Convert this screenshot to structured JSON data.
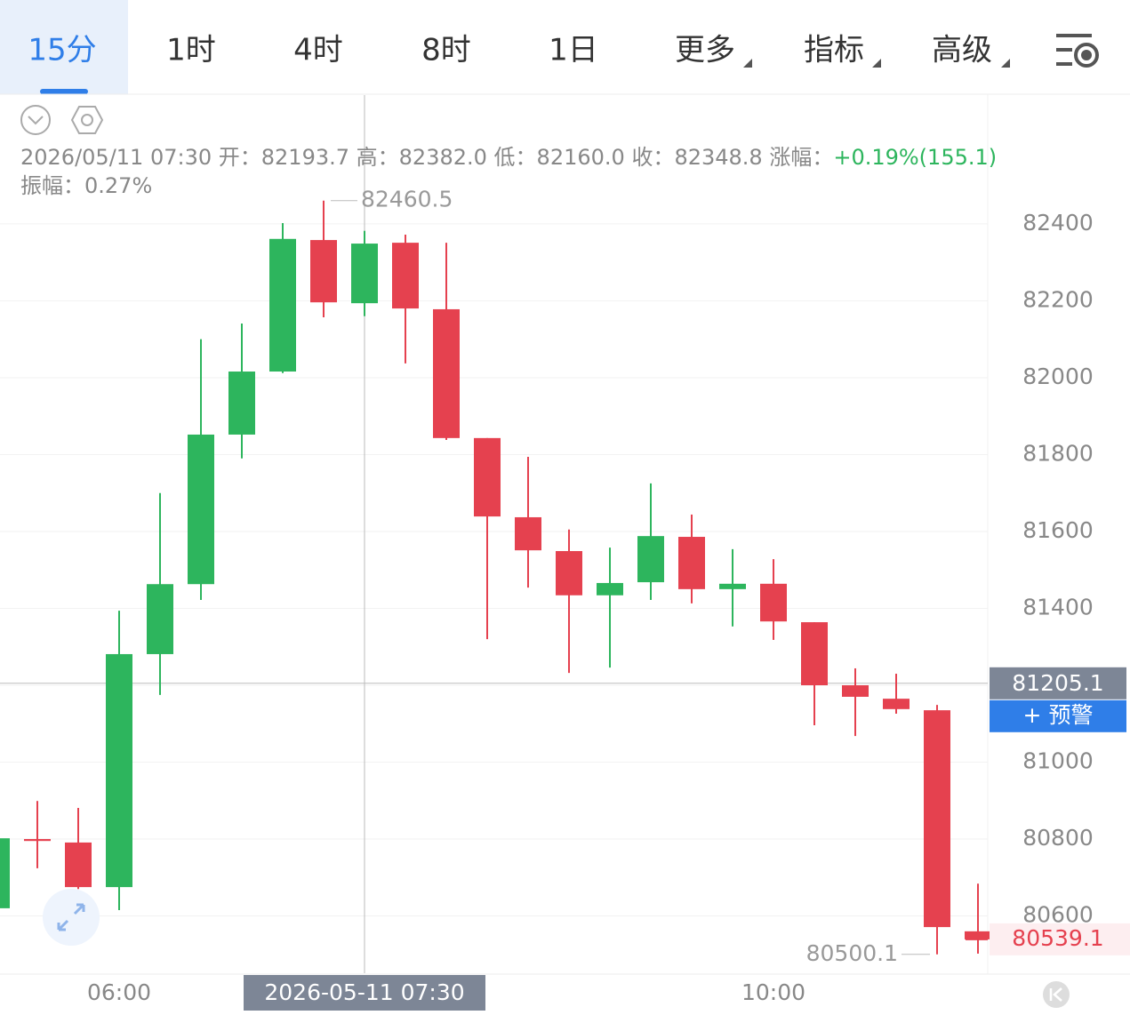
{
  "toolbar": {
    "tabs": [
      "15分",
      "1时",
      "4时",
      "8时",
      "1日",
      "更多",
      "指标",
      "高级"
    ]
  },
  "info": {
    "datetime": "2026/05/11 07:30",
    "open_label": "开：",
    "open": "82193.7",
    "high_label": "高：",
    "high": "82382.0",
    "low_label": "低：",
    "low": "82160.0",
    "close_label": "收：",
    "close": "82348.8",
    "change_label": "涨幅：",
    "change": "+0.19%(155.1)",
    "amplitude_label": "振幅：",
    "amplitude": "0.27%"
  },
  "chart_data": {
    "type": "candlestick",
    "categories": [
      null,
      null,
      null,
      "06:00",
      null,
      null,
      null,
      null,
      null,
      "2026-05-11 07:30",
      null,
      null,
      null,
      null,
      null,
      null,
      null,
      null,
      null,
      "10:00",
      null,
      null,
      null,
      null,
      null
    ],
    "open": [
      80620,
      80800,
      80791,
      80675,
      81281,
      81463,
      81852,
      82016,
      82358,
      82193.7,
      82351,
      82178,
      81843,
      81637,
      81549,
      81434,
      81468,
      81586,
      81450,
      81464,
      81364,
      81200,
      81165,
      81135,
      80560
    ],
    "high": [
      80802,
      80899,
      80881,
      81394,
      81700,
      82100,
      82141,
      82402,
      82460.5,
      82382.0,
      82372,
      82351,
      81843,
      81794,
      81605,
      81558,
      81725,
      81644,
      81554,
      81528,
      81364,
      81244,
      81230,
      81149,
      80684
    ],
    "low": [
      80620,
      80724,
      80670,
      80615,
      81175,
      81422,
      81790,
      82012,
      82157,
      82160.0,
      82037,
      81838,
      81320,
      81454,
      81232,
      81246,
      81422,
      81413,
      81353,
      81318,
      81096,
      81068,
      81126,
      80500.1,
      80502
    ],
    "close": [
      80802,
      80795,
      80675,
      81281,
      81463,
      81852,
      82016,
      82361,
      82196,
      82348.8,
      82180,
      81843,
      81639,
      81551,
      81434,
      81466,
      81588,
      81450,
      81464,
      81366,
      81200,
      81170,
      81138,
      80571,
      80539.1
    ],
    "up_color": "#2db55d",
    "down_color": "#e5414f",
    "ylim": [
      80451,
      82735
    ],
    "yticks": [
      80600,
      80800,
      81000,
      81200,
      81400,
      81600,
      81800,
      82000,
      82200,
      82400
    ],
    "grid": true,
    "crosshair": {
      "index": 9,
      "value": 81205.1,
      "alert_label": "+ 预警"
    },
    "high_marker": 8,
    "low_marker": 23
  }
}
